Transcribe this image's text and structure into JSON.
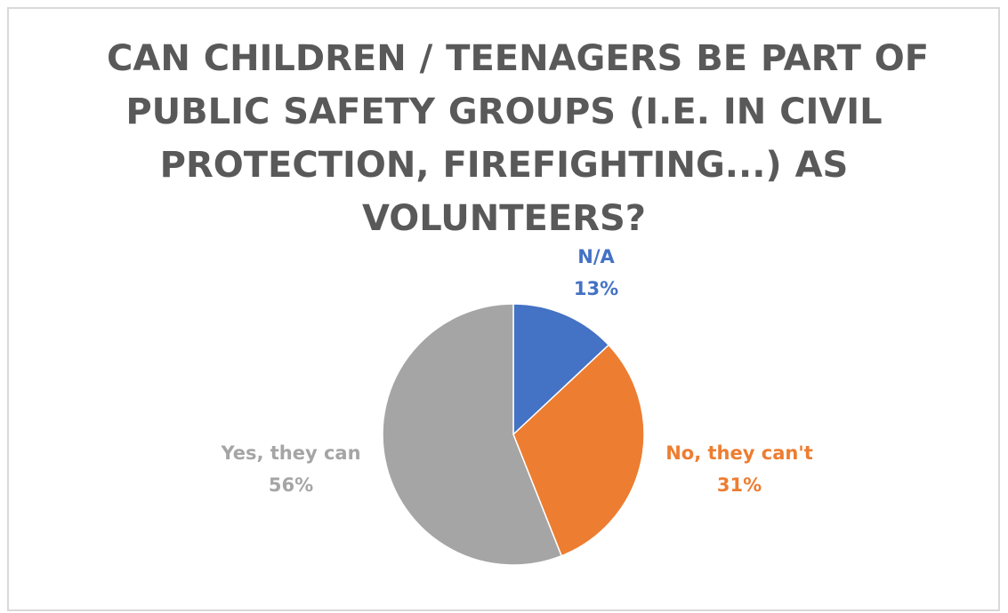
{
  "chart_data": {
    "type": "pie",
    "title_lines": [
      "CAN CHILDREN / TEENAGERS BE PART OF",
      "PUBLIC SAFETY GROUPS (I.E. IN CIVIL",
      "PROTECTION, FIREFIGHTING...) AS",
      "VOLUNTEERS?"
    ],
    "slices": [
      {
        "label": "N/A",
        "percent_text": "13%",
        "value": 13,
        "color": "#4472c4"
      },
      {
        "label": "No, they can't",
        "percent_text": "31%",
        "value": 31,
        "color": "#ed7d31"
      },
      {
        "label": "Yes, they can",
        "percent_text": "56%",
        "value": 56,
        "color": "#a5a5a5"
      }
    ],
    "start_angle": "12 o'clock",
    "direction": "clockwise",
    "legend": "none"
  }
}
